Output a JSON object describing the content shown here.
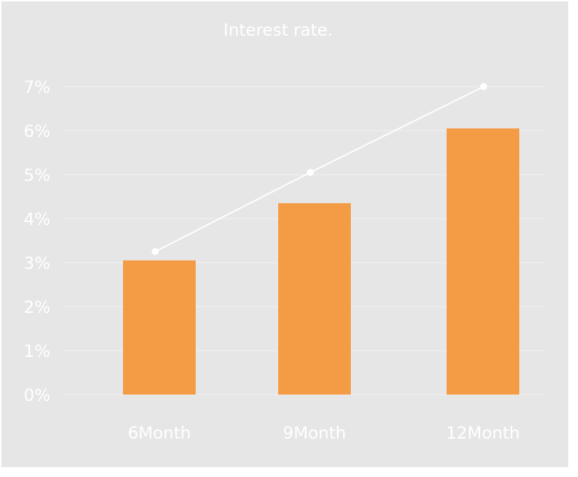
{
  "chart_data": {
    "type": "bar",
    "title": "Interest rate.",
    "categories": [
      "6Month",
      "9Month",
      "12Month"
    ],
    "series": [
      {
        "type": "bar",
        "values": [
          3.05,
          4.35,
          6.05
        ]
      },
      {
        "type": "line",
        "values": [
          3.25,
          5.05,
          7.0
        ]
      }
    ],
    "y_ticks": [
      "0%",
      "1%",
      "2%",
      "3%",
      "4%",
      "5%",
      "6%",
      "7%"
    ],
    "ylim": [
      0,
      7
    ],
    "grid": true,
    "legend": "none",
    "colors": {
      "background": "#e6e6e6",
      "bar": "#f39c45",
      "line": "#ffffff",
      "grid": "#f2f2f2",
      "text": "#ffffff"
    }
  }
}
